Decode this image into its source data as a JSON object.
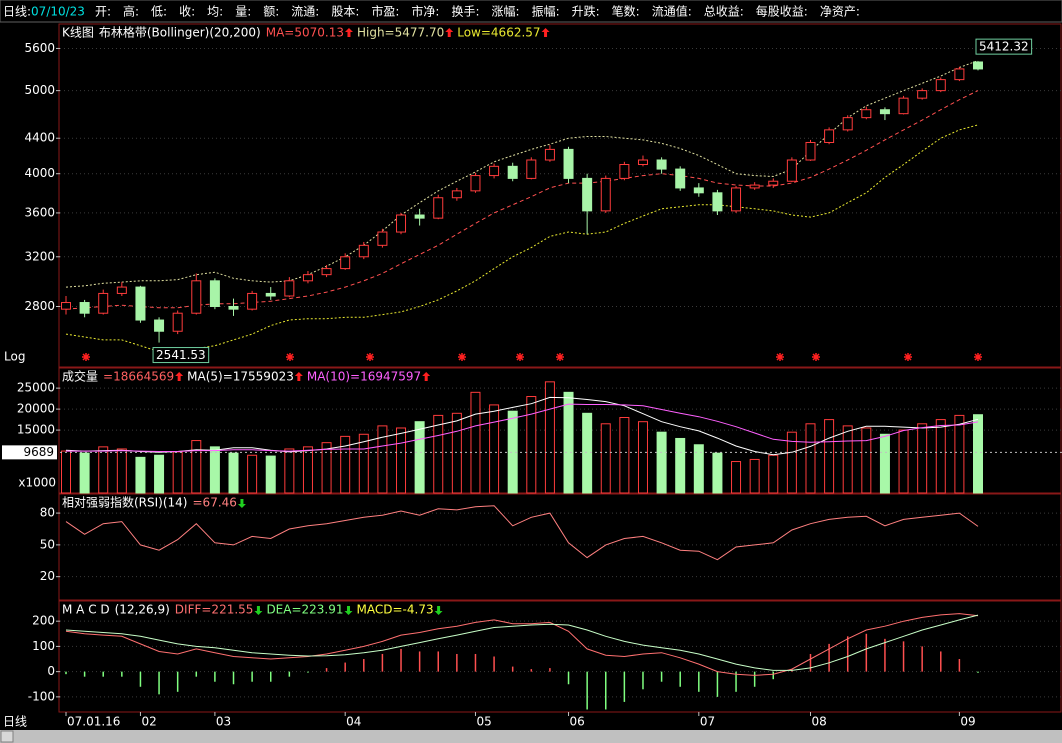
{
  "header": {
    "mode": "日线:",
    "date": "07/10/23",
    "fields": [
      "开:",
      "高:",
      "低:",
      "收:",
      "均:",
      "量:",
      "额:",
      "流通:",
      "股本:",
      "市盈:",
      "市净:",
      "换手:",
      "涨幅:",
      "振幅:",
      "升跌:",
      "笔数:",
      "流通值:",
      "总收益:",
      "每股收益:",
      "净资产:"
    ]
  },
  "chart_data": [
    {
      "type": "candlestick",
      "title": "K线图",
      "subtitle": "布林格带(Bollinger)(20,200)",
      "legend": [
        {
          "text": "MA=5070.13",
          "color": "#ff5050",
          "trend": "up"
        },
        {
          "text": "High=5477.70",
          "color": "#e0e0a0",
          "trend": "up"
        },
        {
          "text": "Low=4662.57",
          "color": "#e8e830",
          "trend": "up"
        }
      ],
      "log": true,
      "scale_label": "Log",
      "grid": true,
      "ylim": [
        2380,
        5980
      ],
      "yticks": [
        2800,
        3200,
        3600,
        4000,
        4400,
        5000,
        5600
      ],
      "up_color": "#ff3c3c",
      "down_color": "#a8f4a8",
      "candles": [
        [
          2780,
          2880,
          2740,
          2830
        ],
        [
          2830,
          2850,
          2720,
          2750
        ],
        [
          2750,
          2930,
          2740,
          2900
        ],
        [
          2900,
          2990,
          2880,
          2950
        ],
        [
          2950,
          2960,
          2680,
          2700
        ],
        [
          2700,
          2720,
          2541.53,
          2620
        ],
        [
          2620,
          2770,
          2600,
          2750
        ],
        [
          2750,
          3060,
          2740,
          3000
        ],
        [
          3000,
          3020,
          2780,
          2800
        ],
        [
          2800,
          2860,
          2730,
          2780
        ],
        [
          2780,
          2920,
          2770,
          2900
        ],
        [
          2900,
          2950,
          2850,
          2880
        ],
        [
          2880,
          3030,
          2870,
          3000
        ],
        [
          3000,
          3080,
          2980,
          3050
        ],
        [
          3050,
          3130,
          3030,
          3100
        ],
        [
          3100,
          3230,
          3090,
          3200
        ],
        [
          3200,
          3330,
          3180,
          3300
        ],
        [
          3300,
          3450,
          3280,
          3420
        ],
        [
          3420,
          3600,
          3400,
          3580
        ],
        [
          3580,
          3640,
          3480,
          3550
        ],
        [
          3550,
          3780,
          3540,
          3750
        ],
        [
          3750,
          3850,
          3720,
          3820
        ],
        [
          3820,
          4010,
          3800,
          3980
        ],
        [
          3980,
          4110,
          3950,
          4080
        ],
        [
          4080,
          4120,
          3920,
          3950
        ],
        [
          3950,
          4180,
          3940,
          4150
        ],
        [
          4150,
          4320,
          4130,
          4270
        ],
        [
          4270,
          4300,
          3900,
          3950
        ],
        [
          3950,
          4000,
          3400,
          3620
        ],
        [
          3620,
          3980,
          3600,
          3950
        ],
        [
          3950,
          4130,
          3930,
          4100
        ],
        [
          4100,
          4200,
          4080,
          4150
        ],
        [
          4150,
          4180,
          4000,
          4050
        ],
        [
          4050,
          4080,
          3820,
          3850
        ],
        [
          3850,
          3900,
          3760,
          3800
        ],
        [
          3800,
          3830,
          3580,
          3620
        ],
        [
          3620,
          3870,
          3600,
          3850
        ],
        [
          3850,
          3910,
          3830,
          3880
        ],
        [
          3880,
          3950,
          3850,
          3920
        ],
        [
          3920,
          4180,
          3910,
          4150
        ],
        [
          4150,
          4380,
          4140,
          4350
        ],
        [
          4350,
          4530,
          4330,
          4500
        ],
        [
          4500,
          4680,
          4480,
          4650
        ],
        [
          4650,
          4790,
          4630,
          4750
        ],
        [
          4750,
          4780,
          4620,
          4700
        ],
        [
          4700,
          4930,
          4690,
          4900
        ],
        [
          4900,
          5030,
          4880,
          5000
        ],
        [
          5000,
          5180,
          4980,
          5150
        ],
        [
          5150,
          5330,
          5130,
          5300
        ],
        [
          5400,
          5412.32,
          5280,
          5300
        ]
      ],
      "series": [
        {
          "color": "#ff5050",
          "style": "dashed",
          "values": [
            2780,
            2790,
            2800,
            2810,
            2800,
            2790,
            2790,
            2810,
            2820,
            2820,
            2830,
            2840,
            2860,
            2880,
            2910,
            2950,
            3000,
            3060,
            3140,
            3220,
            3300,
            3400,
            3500,
            3600,
            3680,
            3760,
            3850,
            3900,
            3900,
            3920,
            3950,
            3980,
            4000,
            3980,
            3950,
            3900,
            3880,
            3870,
            3870,
            3900,
            3960,
            4050,
            4150,
            4260,
            4380,
            4500,
            4620,
            4750,
            4880,
            5000
          ]
        },
        {
          "color": "#e0e0a0",
          "style": "dotted",
          "values": [
            2950,
            2960,
            2980,
            2990,
            3000,
            3000,
            3010,
            3050,
            3070,
            3020,
            3000,
            2990,
            3000,
            3050,
            3120,
            3200,
            3300,
            3430,
            3580,
            3700,
            3820,
            3920,
            4020,
            4130,
            4200,
            4270,
            4330,
            4400,
            4420,
            4420,
            4400,
            4380,
            4340,
            4280,
            4200,
            4100,
            4000,
            3980,
            3970,
            4050,
            4250,
            4450,
            4650,
            4800,
            4900,
            5000,
            5100,
            5200,
            5320,
            5420
          ]
        },
        {
          "color": "#e8e830",
          "style": "dotted",
          "values": [
            2600,
            2580,
            2560,
            2560,
            2520,
            2480,
            2480,
            2500,
            2520,
            2560,
            2600,
            2660,
            2700,
            2710,
            2710,
            2720,
            2720,
            2740,
            2760,
            2800,
            2850,
            2920,
            3000,
            3100,
            3200,
            3280,
            3380,
            3420,
            3400,
            3420,
            3500,
            3570,
            3640,
            3660,
            3680,
            3680,
            3660,
            3640,
            3620,
            3580,
            3560,
            3600,
            3700,
            3800,
            3960,
            4100,
            4250,
            4400,
            4500,
            4560
          ]
        }
      ]
    },
    {
      "type": "bar",
      "title": "成交量",
      "legend": [
        {
          "text": "=18664569",
          "color": "#ff6060",
          "trend": "up"
        },
        {
          "text": "MA(5)=17559023",
          "color": "#ffffff",
          "trend": "up"
        },
        {
          "text": "MA(10)=16947597",
          "color": "#ff60ff",
          "trend": "up"
        }
      ],
      "grid": true,
      "ylim": [
        0,
        29800
      ],
      "yticks": [
        15000,
        20000,
        25000
      ],
      "unit_label": "x1000",
      "cursor": 9689,
      "up_color": "#ff3c3c",
      "down_color": "#a8f8a8",
      "values": [
        10000,
        9500,
        11000,
        10500,
        8500,
        9000,
        9800,
        12500,
        11000,
        9500,
        9000,
        8800,
        10500,
        11000,
        12000,
        13500,
        14000,
        16000,
        15500,
        17000,
        18500,
        19000,
        24000,
        21000,
        19500,
        23000,
        26500,
        24000,
        19000,
        16500,
        18000,
        17000,
        14500,
        13000,
        11500,
        9500,
        7500,
        8000,
        9000,
        14500,
        16500,
        17500,
        16000,
        15500,
        14000,
        15000,
        16500,
        17500,
        18500,
        18664.569
      ],
      "series": [
        {
          "color": "#ffffff",
          "style": "solid",
          "values": [
            10200,
            10000,
            10100,
            10200,
            9900,
            9700,
            9900,
            10300,
            10200,
            10800,
            10800,
            10200,
            9800,
            10100,
            10500,
            11200,
            12200,
            13300,
            14200,
            15200,
            16200,
            17200,
            18800,
            19500,
            20400,
            21300,
            22800,
            22700,
            22300,
            21800,
            20800,
            18900,
            17000,
            15800,
            14800,
            13100,
            11200,
            9900,
            9100,
            9700,
            11100,
            13100,
            14700,
            15900,
            15900,
            15700,
            15500,
            15700,
            16400,
            17559.023
          ]
        },
        {
          "color": "#ff60ff",
          "style": "solid",
          "values": [
            10000,
            10000,
            10000,
            10100,
            10000,
            9900,
            9900,
            10100,
            10100,
            10300,
            10300,
            10100,
            10000,
            10200,
            10400,
            10500,
            10500,
            11200,
            11900,
            12800,
            13700,
            14700,
            16000,
            16900,
            17800,
            18800,
            20000,
            21200,
            21100,
            21100,
            21000,
            20800,
            19900,
            19000,
            18200,
            17100,
            15800,
            14300,
            12800,
            12300,
            12100,
            12200,
            12400,
            12500,
            13500,
            14900,
            15600,
            16100,
            16200,
            16947.597
          ]
        }
      ]
    },
    {
      "type": "line",
      "title": "相对强弱指数(RSI)(14)",
      "legend": [
        {
          "text": "=67.46",
          "color": "#ff8080",
          "trend": "down"
        }
      ],
      "grid": true,
      "ylim": [
        -2,
        98
      ],
      "yticks": [
        20,
        50,
        80
      ],
      "series": [
        {
          "color": "#ff8080",
          "style": "solid",
          "values": [
            72,
            60,
            70,
            72,
            50,
            45,
            55,
            70,
            52,
            50,
            58,
            56,
            65,
            68,
            70,
            73,
            76,
            78,
            82,
            78,
            84,
            83,
            86,
            87,
            68,
            76,
            80,
            52,
            38,
            50,
            56,
            58,
            52,
            45,
            44,
            36,
            48,
            50,
            52,
            64,
            70,
            74,
            76,
            77,
            68,
            74,
            76,
            78,
            80,
            67.46
          ]
        }
      ]
    },
    {
      "type": "macd",
      "title": "M A C D",
      "subtitle": "(12,26,9)",
      "legend": [
        {
          "text": "DIFF=221.55",
          "color": "#ff7070",
          "trend": "down"
        },
        {
          "text": "DEA=223.91",
          "color": "#80ff80",
          "trend": "down"
        },
        {
          "text": "MACD=-4.73",
          "color": "#ffff40",
          "trend": "down"
        }
      ],
      "grid": true,
      "ylim": [
        -160,
        280
      ],
      "yticks": [
        -100,
        0,
        100,
        200
      ],
      "x_label": "日线",
      "categories": [
        "07.01.16",
        null,
        null,
        null,
        "02",
        null,
        null,
        null,
        "03",
        null,
        null,
        null,
        null,
        null,
        null,
        "04",
        null,
        null,
        null,
        null,
        null,
        null,
        "05",
        null,
        null,
        null,
        null,
        "06",
        null,
        null,
        null,
        null,
        null,
        null,
        "07",
        null,
        null,
        null,
        null,
        null,
        "08",
        null,
        null,
        null,
        null,
        null,
        null,
        null,
        "09",
        null
      ],
      "pos_color": "#ff5050",
      "neg_color": "#80ff80",
      "histogram": [
        -10,
        -20,
        -20,
        -20,
        -60,
        -90,
        -80,
        -20,
        -40,
        -50,
        -40,
        -40,
        -20,
        -4,
        14,
        36,
        50,
        70,
        90,
        80,
        80,
        70,
        70,
        60,
        20,
        10,
        14,
        -50,
        -150,
        -150,
        -120,
        -70,
        -40,
        -60,
        -80,
        -100,
        -80,
        -60,
        -30,
        10,
        70,
        110,
        140,
        150,
        130,
        120,
        100,
        80,
        50,
        -4.73
      ],
      "series": [
        {
          "color": "#ff7070",
          "style": "solid",
          "values": [
            160,
            150,
            145,
            140,
            110,
            80,
            70,
            90,
            75,
            60,
            55,
            50,
            55,
            60,
            70,
            85,
            100,
            120,
            145,
            155,
            170,
            180,
            195,
            205,
            190,
            190,
            195,
            160,
            90,
            65,
            60,
            70,
            75,
            55,
            30,
            0,
            -10,
            -15,
            -10,
            10,
            50,
            90,
            130,
            165,
            180,
            200,
            215,
            225,
            230,
            221.55
          ]
        },
        {
          "color": "#c8ffc8",
          "style": "solid",
          "values": [
            165,
            160,
            155,
            150,
            140,
            125,
            110,
            100,
            95,
            85,
            75,
            70,
            65,
            62,
            63,
            67,
            75,
            85,
            100,
            115,
            130,
            145,
            160,
            175,
            180,
            185,
            188,
            185,
            165,
            140,
            120,
            105,
            95,
            85,
            70,
            50,
            30,
            15,
            5,
            5,
            15,
            35,
            60,
            90,
            115,
            140,
            165,
            185,
            205,
            223.91
          ]
        }
      ]
    }
  ]
}
